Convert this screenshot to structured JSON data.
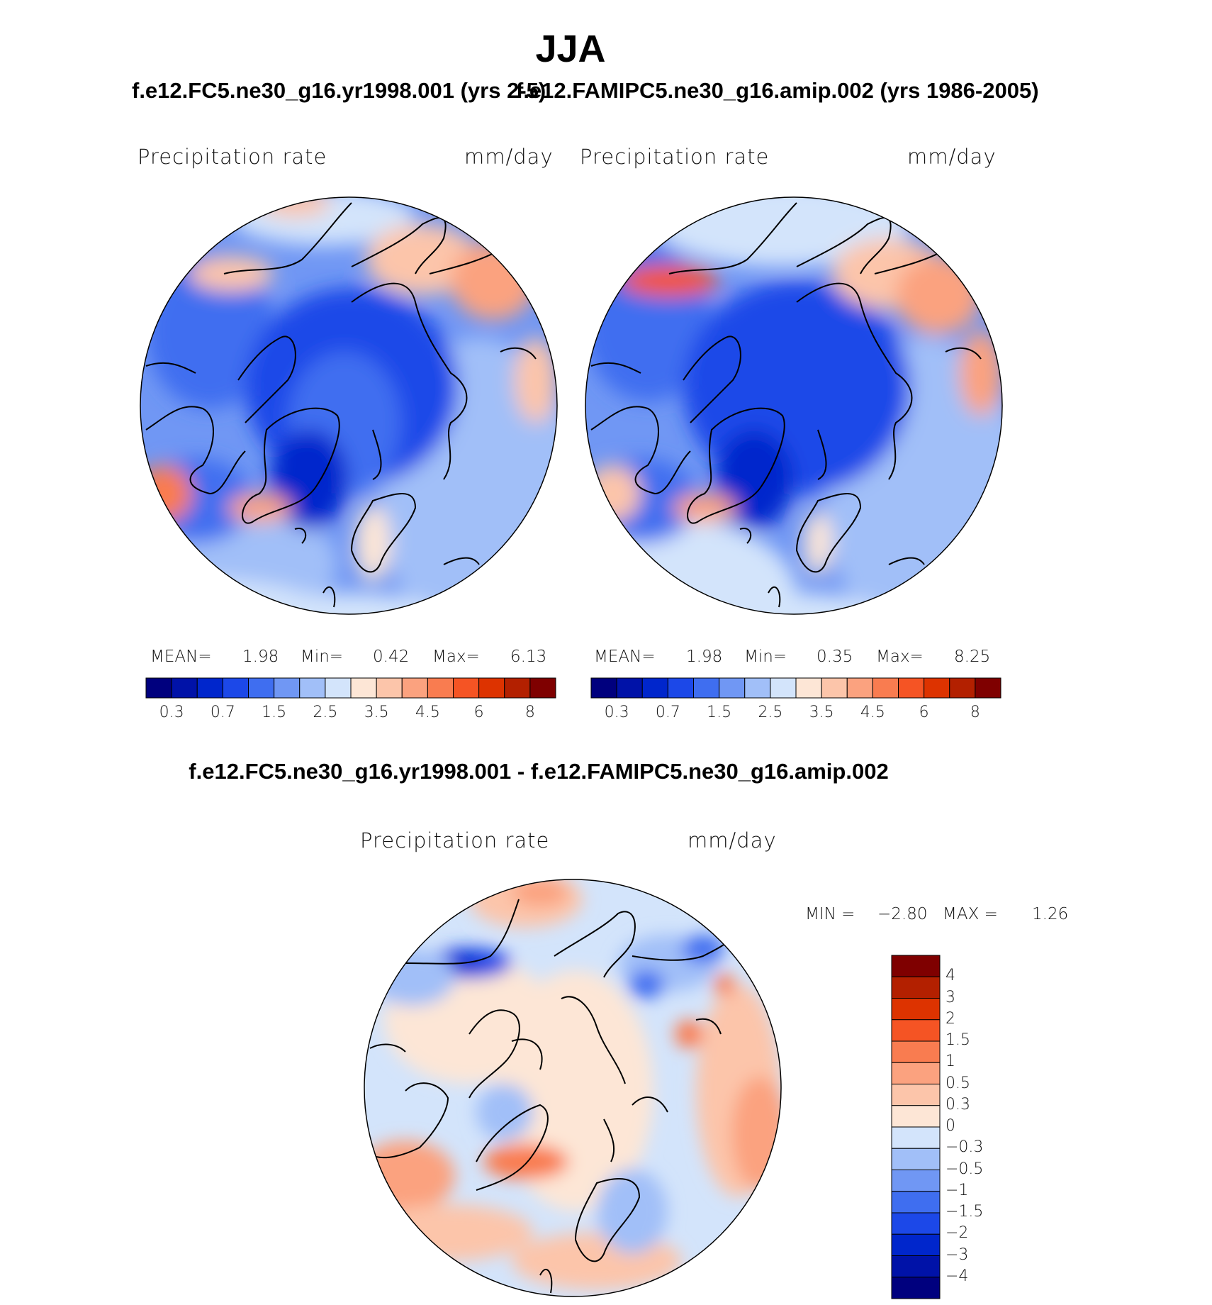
{
  "title": "JJA",
  "panels": [
    {
      "case": "f.e12.FC5.ne30_g16.yr1998.001 (yrs 2-5)",
      "variable": "Precipitation  rate",
      "units": "mm/day",
      "stats": {
        "mean_label": "MEAN=",
        "mean": "1.98",
        "min_label": "Min=",
        "min": "0.42",
        "max_label": "Max=",
        "max": "6.13"
      }
    },
    {
      "case": "f.e12.FAMIPC5.ne30_g16.amip.002 (yrs 1986-2005)",
      "variable": "Precipitation  rate",
      "units": "mm/day",
      "stats": {
        "mean_label": "MEAN=",
        "mean": "1.98",
        "min_label": "Min=",
        "min": "0.35",
        "max_label": "Max=",
        "max": "8.25"
      }
    }
  ],
  "difference": {
    "title": "f.e12.FC5.ne30_g16.yr1998.001 - f.e12.FAMIPC5.ne30_g16.amip.002",
    "variable": "Precipitation  rate",
    "units": "mm/day",
    "min_label": "MIN  =",
    "min": "−2.80",
    "max_label": "MAX  =",
    "max": "1.26"
  },
  "colorbar_horizontal": {
    "colors": [
      "#00007e",
      "#0012a8",
      "#0026cc",
      "#1c48e8",
      "#3f6ef0",
      "#7097f4",
      "#a1bff8",
      "#d3e4fb",
      "#fde6d6",
      "#fcc5aa",
      "#fba27f",
      "#f97c50",
      "#f55424",
      "#dd3300",
      "#b32000",
      "#7f0000"
    ],
    "tick_labels": [
      "0.3",
      "0.7",
      "1.5",
      "2.5",
      "3.5",
      "4.5",
      "6",
      "8"
    ]
  },
  "colorbar_vertical": {
    "colors": [
      "#7f0000",
      "#b32000",
      "#dd3300",
      "#f55424",
      "#f97c50",
      "#fba27f",
      "#fcc5aa",
      "#fde6d6",
      "#d3e4fb",
      "#a1bff8",
      "#7097f4",
      "#3f6ef0",
      "#1c48e8",
      "#0026cc",
      "#0012a8",
      "#00007e"
    ],
    "tick_labels": [
      "4",
      "3",
      "2",
      "1.5",
      "1",
      "0.5",
      "0.3",
      "0",
      "−0.3",
      "−0.5",
      "−1",
      "−1.5",
      "−2",
      "−3",
      "−4"
    ]
  }
}
